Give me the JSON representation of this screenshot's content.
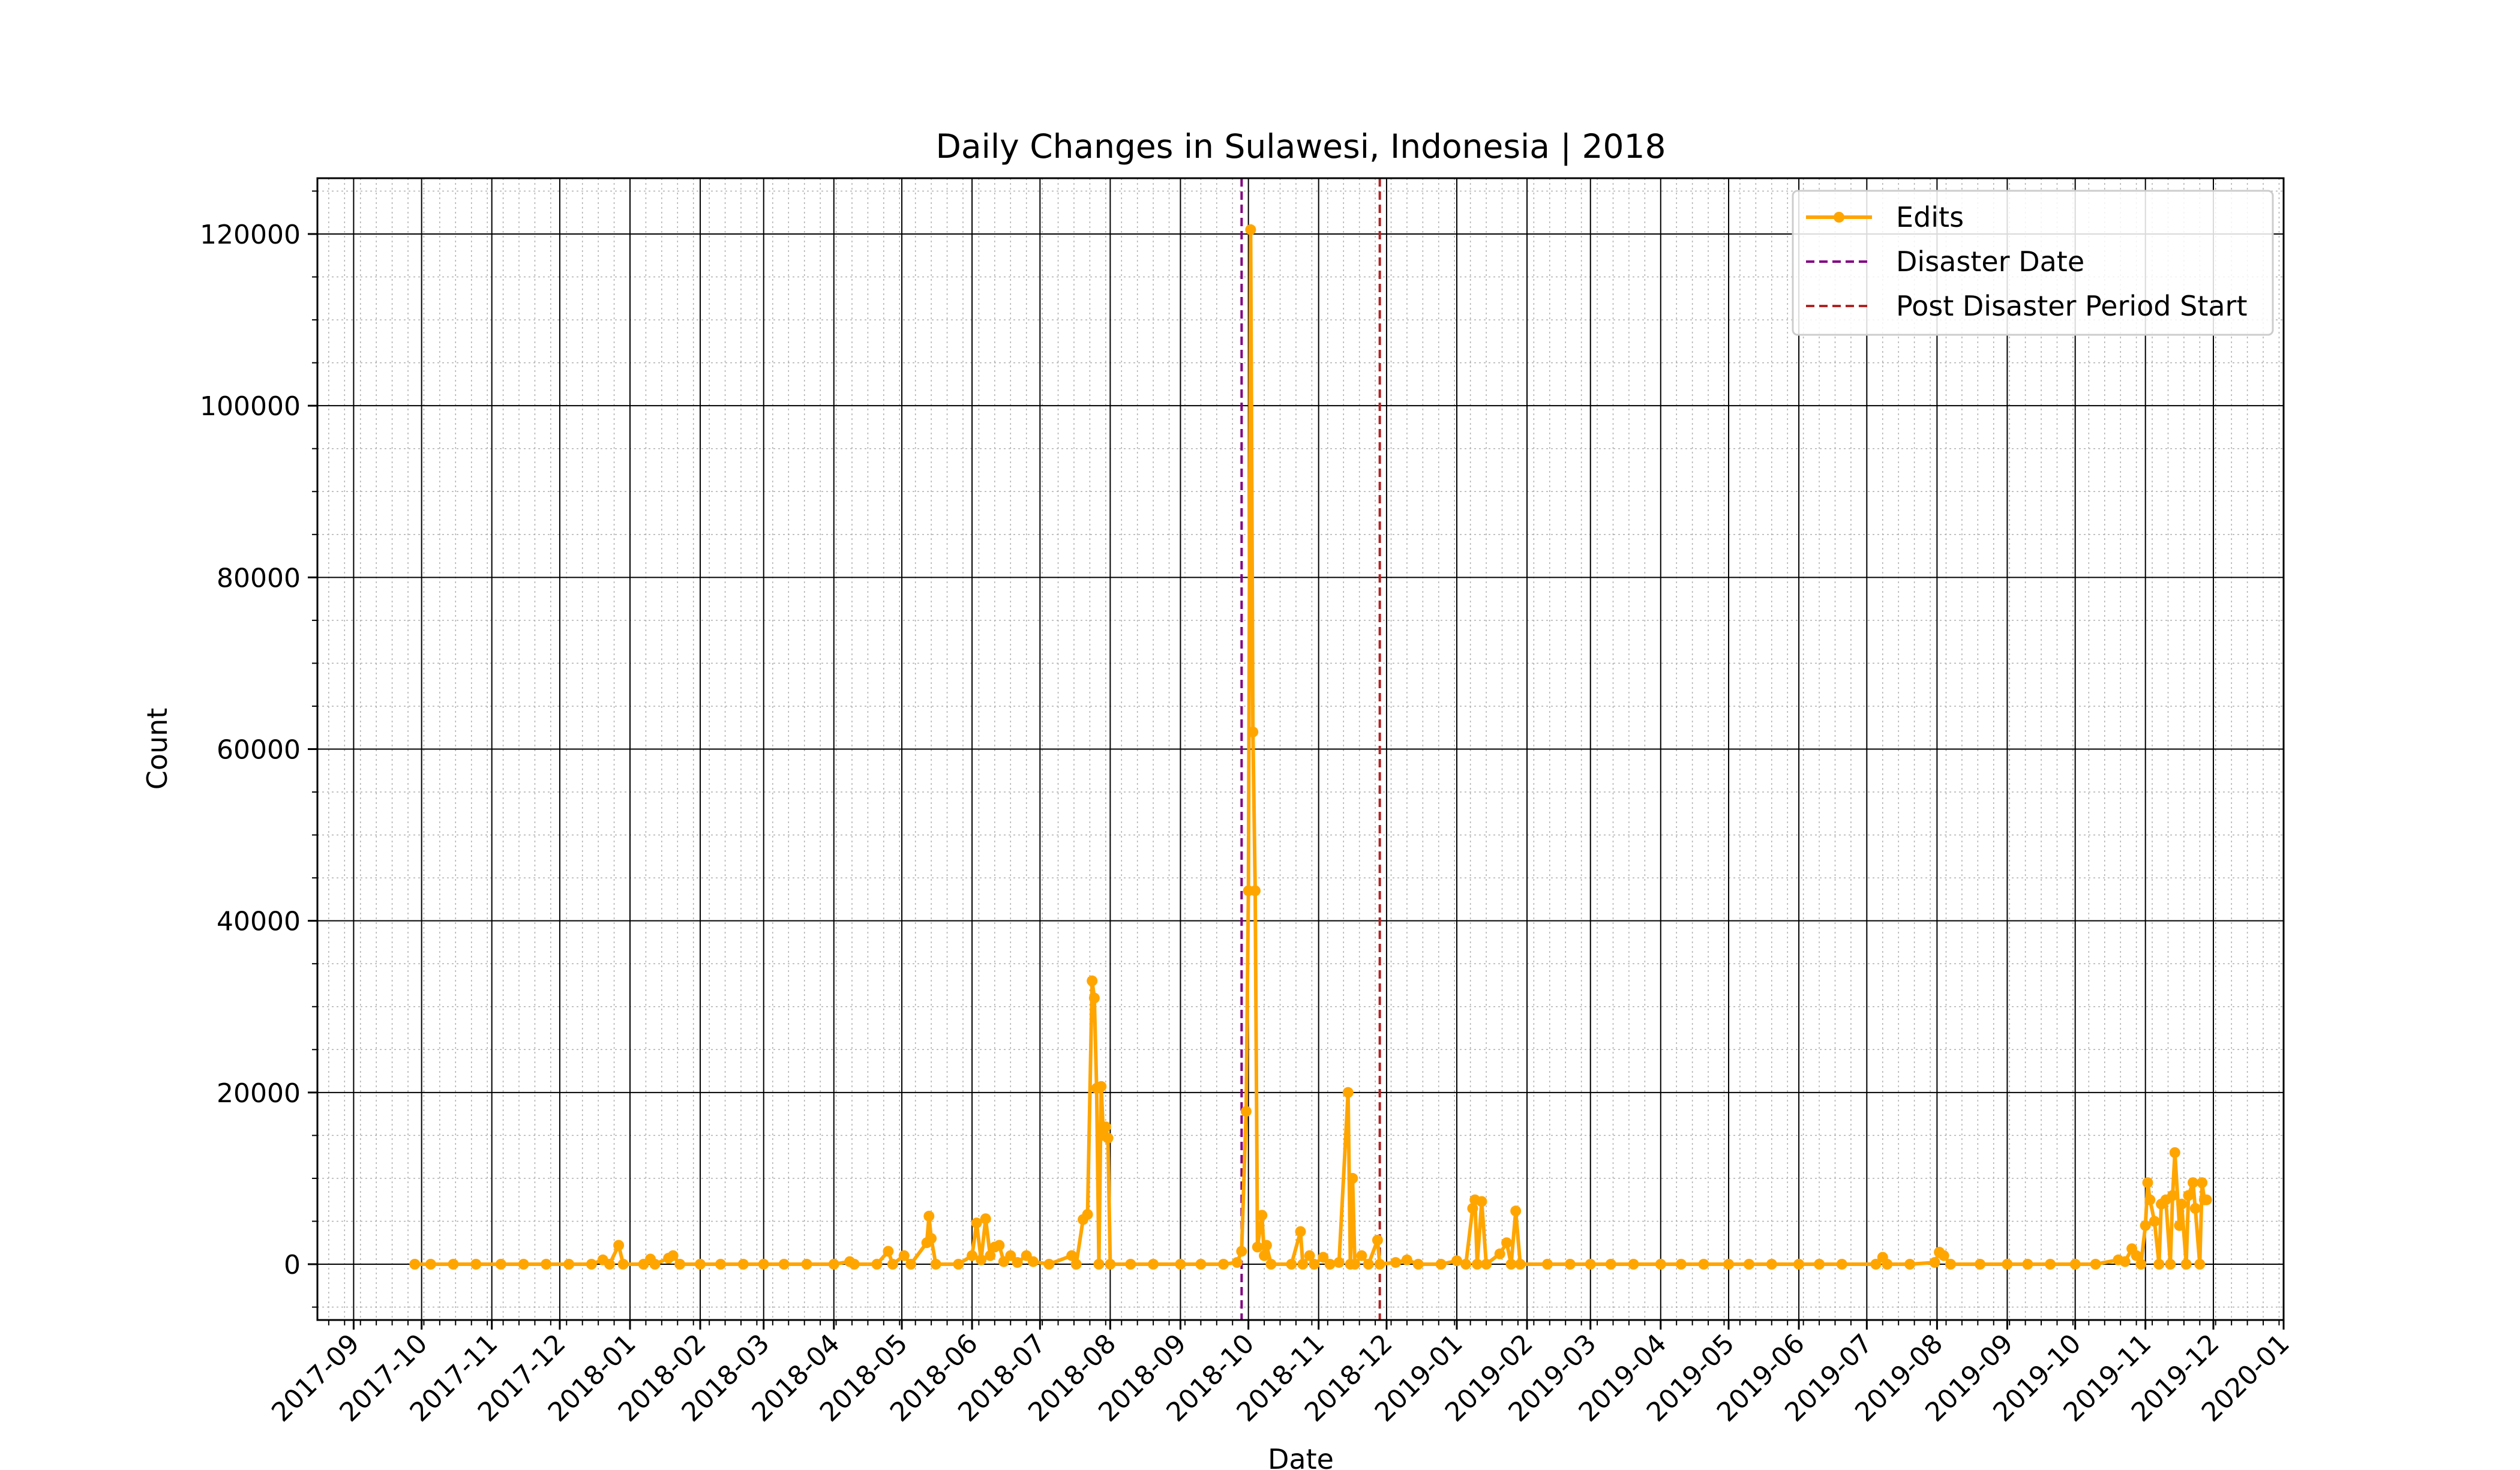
{
  "chart_data": {
    "type": "line",
    "title": "Daily Changes in Sulawesi, Indonesia | 2018",
    "xlabel": "Date",
    "ylabel": "Count",
    "x_axis": {
      "type": "date",
      "range": [
        "2017-08-16",
        "2020-01-01"
      ],
      "tick_labels": [
        "2017-09",
        "2017-10",
        "2017-11",
        "2017-12",
        "2018-01",
        "2018-02",
        "2018-03",
        "2018-04",
        "2018-05",
        "2018-06",
        "2018-07",
        "2018-08",
        "2018-09",
        "2018-10",
        "2018-11",
        "2018-12",
        "2019-01",
        "2019-02",
        "2019-03",
        "2019-04",
        "2019-05",
        "2019-06",
        "2019-07",
        "2019-08",
        "2019-09",
        "2019-10",
        "2019-11",
        "2019-12",
        "2020-01"
      ]
    },
    "y_axis": {
      "range": [
        -6500,
        126500
      ],
      "ticks": [
        0,
        20000,
        40000,
        60000,
        80000,
        100000,
        120000
      ]
    },
    "grid": true,
    "legend_position": "top-right",
    "series": [
      {
        "name": "Edits",
        "color": "#FFA500",
        "points": [
          [
            "2017-09-28",
            0
          ],
          [
            "2017-10-05",
            0
          ],
          [
            "2017-10-15",
            0
          ],
          [
            "2017-10-25",
            0
          ],
          [
            "2017-11-05",
            0
          ],
          [
            "2017-11-15",
            0
          ],
          [
            "2017-11-25",
            0
          ],
          [
            "2017-12-05",
            0
          ],
          [
            "2017-12-15",
            0
          ],
          [
            "2017-12-20",
            500
          ],
          [
            "2017-12-23",
            0
          ],
          [
            "2017-12-27",
            2200
          ],
          [
            "2017-12-29",
            0
          ],
          [
            "2018-01-07",
            0
          ],
          [
            "2018-01-10",
            600
          ],
          [
            "2018-01-12",
            0
          ],
          [
            "2018-01-18",
            700
          ],
          [
            "2018-01-20",
            1000
          ],
          [
            "2018-01-23",
            0
          ],
          [
            "2018-02-01",
            0
          ],
          [
            "2018-02-10",
            0
          ],
          [
            "2018-02-20",
            0
          ],
          [
            "2018-03-01",
            0
          ],
          [
            "2018-03-10",
            0
          ],
          [
            "2018-03-20",
            0
          ],
          [
            "2018-04-01",
            0
          ],
          [
            "2018-04-08",
            300
          ],
          [
            "2018-04-10",
            0
          ],
          [
            "2018-04-20",
            0
          ],
          [
            "2018-04-25",
            1500
          ],
          [
            "2018-04-27",
            0
          ],
          [
            "2018-05-02",
            1000
          ],
          [
            "2018-05-05",
            0
          ],
          [
            "2018-05-12",
            2500
          ],
          [
            "2018-05-13",
            5600
          ],
          [
            "2018-05-14",
            3000
          ],
          [
            "2018-05-16",
            0
          ],
          [
            "2018-05-26",
            0
          ],
          [
            "2018-06-01",
            1000
          ],
          [
            "2018-06-03",
            4800
          ],
          [
            "2018-06-05",
            500
          ],
          [
            "2018-06-07",
            5300
          ],
          [
            "2018-06-09",
            1000
          ],
          [
            "2018-06-11",
            2000
          ],
          [
            "2018-06-13",
            2200
          ],
          [
            "2018-06-15",
            300
          ],
          [
            "2018-06-18",
            1000
          ],
          [
            "2018-06-21",
            200
          ],
          [
            "2018-06-25",
            1000
          ],
          [
            "2018-06-28",
            300
          ],
          [
            "2018-07-05",
            0
          ],
          [
            "2018-07-15",
            1000
          ],
          [
            "2018-07-17",
            0
          ],
          [
            "2018-07-20",
            5200
          ],
          [
            "2018-07-22",
            5800
          ],
          [
            "2018-07-24",
            33000
          ],
          [
            "2018-07-25",
            31000
          ],
          [
            "2018-07-26",
            20500
          ],
          [
            "2018-07-27",
            0
          ],
          [
            "2018-07-28",
            20700
          ],
          [
            "2018-07-29",
            15000
          ],
          [
            "2018-07-30",
            16000
          ],
          [
            "2018-07-31",
            14700
          ],
          [
            "2018-08-01",
            0
          ],
          [
            "2018-08-10",
            0
          ],
          [
            "2018-08-20",
            0
          ],
          [
            "2018-09-01",
            0
          ],
          [
            "2018-09-10",
            0
          ],
          [
            "2018-09-20",
            0
          ],
          [
            "2018-09-26",
            200
          ],
          [
            "2018-09-28",
            1500
          ],
          [
            "2018-09-30",
            17800
          ],
          [
            "2018-10-01",
            43500
          ],
          [
            "2018-10-02",
            120500
          ],
          [
            "2018-10-03",
            62000
          ],
          [
            "2018-10-04",
            43500
          ],
          [
            "2018-10-05",
            2000
          ],
          [
            "2018-10-07",
            5700
          ],
          [
            "2018-10-08",
            1000
          ],
          [
            "2018-10-09",
            2200
          ],
          [
            "2018-10-11",
            0
          ],
          [
            "2018-10-20",
            0
          ],
          [
            "2018-10-24",
            3800
          ],
          [
            "2018-10-25",
            0
          ],
          [
            "2018-10-28",
            1000
          ],
          [
            "2018-10-30",
            0
          ],
          [
            "2018-11-03",
            800
          ],
          [
            "2018-11-06",
            0
          ],
          [
            "2018-11-10",
            200
          ],
          [
            "2018-11-14",
            20000
          ],
          [
            "2018-11-15",
            0
          ],
          [
            "2018-11-16",
            10000
          ],
          [
            "2018-11-17",
            0
          ],
          [
            "2018-11-20",
            1000
          ],
          [
            "2018-11-23",
            0
          ],
          [
            "2018-11-27",
            2800
          ],
          [
            "2018-11-28",
            0
          ],
          [
            "2018-12-05",
            200
          ],
          [
            "2018-12-10",
            500
          ],
          [
            "2018-12-15",
            0
          ],
          [
            "2018-12-25",
            0
          ],
          [
            "2019-01-01",
            400
          ],
          [
            "2019-01-05",
            0
          ],
          [
            "2019-01-08",
            6500
          ],
          [
            "2019-01-09",
            7500
          ],
          [
            "2019-01-10",
            0
          ],
          [
            "2019-01-12",
            7300
          ],
          [
            "2019-01-14",
            0
          ],
          [
            "2019-01-20",
            1200
          ],
          [
            "2019-01-23",
            2500
          ],
          [
            "2019-01-25",
            0
          ],
          [
            "2019-01-27",
            6200
          ],
          [
            "2019-01-29",
            0
          ],
          [
            "2019-02-10",
            0
          ],
          [
            "2019-02-20",
            0
          ],
          [
            "2019-03-01",
            0
          ],
          [
            "2019-03-10",
            0
          ],
          [
            "2019-03-20",
            0
          ],
          [
            "2019-04-01",
            0
          ],
          [
            "2019-04-10",
            0
          ],
          [
            "2019-04-20",
            0
          ],
          [
            "2019-05-01",
            0
          ],
          [
            "2019-05-10",
            0
          ],
          [
            "2019-05-20",
            0
          ],
          [
            "2019-06-01",
            0
          ],
          [
            "2019-06-10",
            0
          ],
          [
            "2019-06-20",
            0
          ],
          [
            "2019-07-05",
            0
          ],
          [
            "2019-07-08",
            800
          ],
          [
            "2019-07-10",
            0
          ],
          [
            "2019-07-20",
            0
          ],
          [
            "2019-07-31",
            200
          ],
          [
            "2019-08-02",
            1400
          ],
          [
            "2019-08-04",
            1000
          ],
          [
            "2019-08-07",
            0
          ],
          [
            "2019-08-20",
            0
          ],
          [
            "2019-09-01",
            0
          ],
          [
            "2019-09-10",
            0
          ],
          [
            "2019-09-20",
            0
          ],
          [
            "2019-10-01",
            0
          ],
          [
            "2019-10-10",
            0
          ],
          [
            "2019-10-20",
            500
          ],
          [
            "2019-10-23",
            300
          ],
          [
            "2019-10-26",
            1800
          ],
          [
            "2019-10-28",
            1000
          ],
          [
            "2019-10-30",
            0
          ],
          [
            "2019-11-01",
            4500
          ],
          [
            "2019-11-02",
            9500
          ],
          [
            "2019-11-03",
            7500
          ],
          [
            "2019-11-05",
            5000
          ],
          [
            "2019-11-07",
            0
          ],
          [
            "2019-11-08",
            7000
          ],
          [
            "2019-11-10",
            7500
          ],
          [
            "2019-11-12",
            0
          ],
          [
            "2019-11-13",
            8000
          ],
          [
            "2019-11-14",
            13000
          ],
          [
            "2019-11-16",
            4500
          ],
          [
            "2019-11-17",
            7000
          ],
          [
            "2019-11-19",
            0
          ],
          [
            "2019-11-20",
            8000
          ],
          [
            "2019-11-22",
            9500
          ],
          [
            "2019-11-23",
            6500
          ],
          [
            "2019-11-25",
            0
          ],
          [
            "2019-11-26",
            9500
          ],
          [
            "2019-11-27",
            7500
          ],
          [
            "2019-11-28",
            7500
          ]
        ]
      }
    ],
    "vertical_lines": [
      {
        "name": "Disaster Date",
        "date": "2018-09-28",
        "color": "#800080",
        "style": "dashed"
      },
      {
        "name": "Post Disaster Period Start",
        "date": "2018-11-28",
        "color": "#B22222",
        "style": "dashed"
      }
    ]
  }
}
